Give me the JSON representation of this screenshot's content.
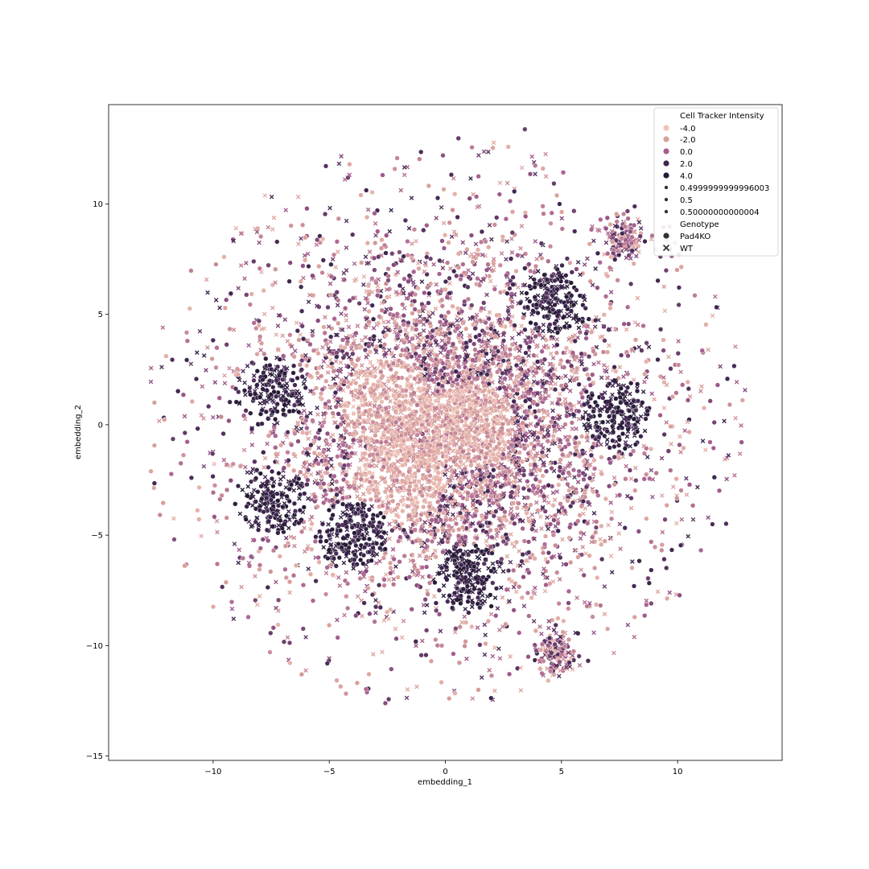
{
  "chart_data": {
    "type": "scatter",
    "title": "",
    "xlabel": "embedding_1",
    "ylabel": "embedding_2",
    "xlim": [
      -14.5,
      14.5
    ],
    "ylim": [
      -15.2,
      14.5
    ],
    "xticks": [
      -10,
      -5,
      0,
      5,
      10
    ],
    "yticks": [
      -15,
      -10,
      -5,
      0,
      5,
      10
    ],
    "grid": false,
    "legend_position": "top-right",
    "legend": {
      "hue_title": "Cell Tracker Intensity",
      "hue_entries": [
        {
          "label": "-4.0",
          "value": -4.0,
          "color": "#efc3b8"
        },
        {
          "label": "-2.0",
          "value": -2.0,
          "color": "#d9a09c"
        },
        {
          "label": "0.0",
          "value": 0.0,
          "color": "#a45d8f"
        },
        {
          "label": "2.0",
          "value": 2.0,
          "color": "#3e2650"
        },
        {
          "label": "4.0",
          "value": 4.0,
          "color": "#251a33"
        }
      ],
      "size_entries": [
        {
          "label": "0.4999999999996003"
        },
        {
          "label": "0.5"
        },
        {
          "label": "0.50000000000004"
        }
      ],
      "style_title": "Genotype",
      "style_entries": [
        {
          "label": "Pad4KO",
          "marker": "circle"
        },
        {
          "label": "WT",
          "marker": "x"
        }
      ]
    },
    "point_count_estimate": 40000,
    "distribution": {
      "shape": "dense roughly circular cloud centred near (0, 0)",
      "x_range": [
        -13,
        13.2
      ],
      "y_range": [
        -13.7,
        13.4
      ],
      "dark_clusters": [
        [
          4.8,
          5.6
        ],
        [
          7.5,
          0.5
        ],
        [
          -7.5,
          1.5
        ],
        [
          -7.5,
          -3.5
        ],
        [
          1.0,
          -7.0
        ],
        [
          -4.0,
          -5.0
        ]
      ],
      "light_clusters": [
        [
          -2.0,
          -2.5
        ],
        [
          1.0,
          0.0
        ],
        [
          -2.5,
          1.0
        ]
      ],
      "isolated_blobs": [
        [
          4.8,
          -10.3
        ],
        [
          7.6,
          8.4
        ]
      ]
    }
  }
}
